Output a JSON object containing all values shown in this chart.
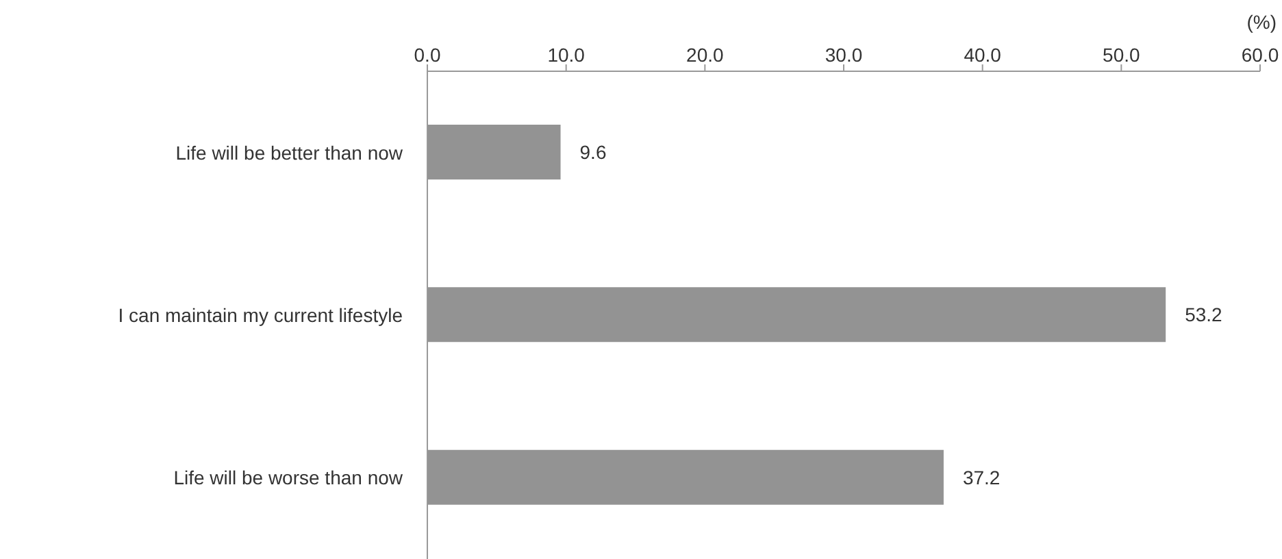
{
  "chart_data": {
    "type": "bar",
    "orientation": "horizontal",
    "xlabel": "(%)",
    "categories": [
      "Life will be better than now",
      "I can maintain my current lifestyle",
      "Life will be worse than now"
    ],
    "values": [
      9.6,
      53.2,
      37.2
    ],
    "color": "#939393",
    "xlim": [
      0,
      60
    ],
    "xticks": [
      {
        "value": 0,
        "label": "0.0"
      },
      {
        "value": 10,
        "label": "10.0"
      },
      {
        "value": 20,
        "label": "20.0"
      },
      {
        "value": 30,
        "label": "30.0"
      },
      {
        "value": 40,
        "label": "40.0"
      },
      {
        "value": 50,
        "label": "50.0"
      },
      {
        "value": 60,
        "label": "60.0"
      }
    ],
    "data_labels": true,
    "grid": false,
    "legend": false
  }
}
